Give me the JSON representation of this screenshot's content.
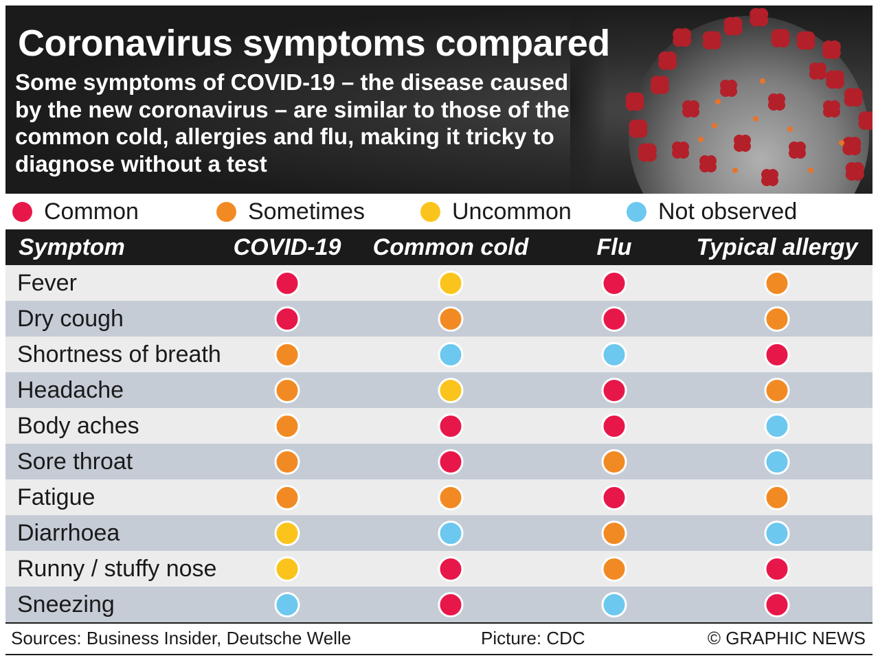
{
  "header": {
    "title": "Coronavirus symptoms compared",
    "subtitle": "Some symptoms of COVID-19 – the disease caused by the new coronavirus – are similar to those of the common cold, allergies and flu, making it tricky to diagnose without a test"
  },
  "legend": [
    {
      "key": "common",
      "label": "Common",
      "color": "#e8174a"
    },
    {
      "key": "sometimes",
      "label": "Sometimes",
      "color": "#f28a24"
    },
    {
      "key": "uncommon",
      "label": "Uncommon",
      "color": "#fbc41c"
    },
    {
      "key": "not_observed",
      "label": "Not observed",
      "color": "#6cc8ee"
    }
  ],
  "table": {
    "columns": [
      "Symptom",
      "COVID-19",
      "Common cold",
      "Flu",
      "Typical allergy"
    ],
    "rows": [
      {
        "symptom": "Fever",
        "values": [
          "common",
          "uncommon",
          "common",
          "sometimes"
        ]
      },
      {
        "symptom": "Dry cough",
        "values": [
          "common",
          "sometimes",
          "common",
          "sometimes"
        ]
      },
      {
        "symptom": "Shortness of breath",
        "values": [
          "sometimes",
          "not_observed",
          "not_observed",
          "common"
        ]
      },
      {
        "symptom": "Headache",
        "values": [
          "sometimes",
          "uncommon",
          "common",
          "sometimes"
        ]
      },
      {
        "symptom": "Body aches",
        "values": [
          "sometimes",
          "common",
          "common",
          "not_observed"
        ]
      },
      {
        "symptom": "Sore throat",
        "values": [
          "sometimes",
          "common",
          "sometimes",
          "not_observed"
        ]
      },
      {
        "symptom": "Fatigue",
        "values": [
          "sometimes",
          "sometimes",
          "common",
          "sometimes"
        ]
      },
      {
        "symptom": "Diarrhoea",
        "values": [
          "uncommon",
          "not_observed",
          "sometimes",
          "not_observed"
        ]
      },
      {
        "symptom": "Runny / stuffy nose",
        "values": [
          "uncommon",
          "common",
          "sometimes",
          "common"
        ]
      },
      {
        "symptom": "Sneezing",
        "values": [
          "not_observed",
          "common",
          "not_observed",
          "common"
        ]
      }
    ]
  },
  "footer": {
    "sources": "Sources: Business Insider, Deutsche Welle",
    "picture": "Picture: CDC",
    "credit": "© GRAPHIC NEWS"
  },
  "colors": {
    "header_bg": "#1b1b1b",
    "row_light": "#ececec",
    "row_dark": "#c5ccd6",
    "virus_spike": "#b3202a",
    "virus_body": "#8f8f8f",
    "virus_accent": "#e8742a"
  }
}
